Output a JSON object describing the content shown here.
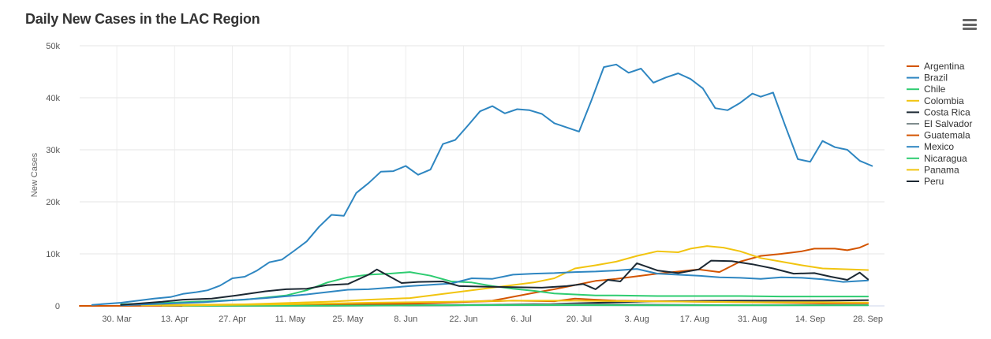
{
  "chart_data": {
    "type": "line",
    "title": "Daily New Cases in the LAC Region",
    "ylabel": "New Cases",
    "xlabel": "",
    "ylim": [
      0,
      50000
    ],
    "yticks": [
      0,
      10000,
      20000,
      30000,
      40000,
      50000
    ],
    "ytick_labels": [
      "0",
      "10k",
      "20k",
      "30k",
      "40k",
      "50k"
    ],
    "x_domain_days": [
      0,
      195
    ],
    "xticks": [
      {
        "day": 9,
        "label": "30. Mar"
      },
      {
        "day": 23,
        "label": "13. Apr"
      },
      {
        "day": 37,
        "label": "27. Apr"
      },
      {
        "day": 51,
        "label": "11. May"
      },
      {
        "day": 65,
        "label": "25. May"
      },
      {
        "day": 79,
        "label": "8. Jun"
      },
      {
        "day": 93,
        "label": "22. Jun"
      },
      {
        "day": 107,
        "label": "6. Jul"
      },
      {
        "day": 121,
        "label": "20. Jul"
      },
      {
        "day": 135,
        "label": "3. Aug"
      },
      {
        "day": 149,
        "label": "17. Aug"
      },
      {
        "day": 163,
        "label": "31. Aug"
      },
      {
        "day": 177,
        "label": "14. Sep"
      },
      {
        "day": 191,
        "label": "28. Sep"
      }
    ],
    "grid": true,
    "legend": "right",
    "series": [
      {
        "name": "Argentina",
        "color": "#d35400",
        "points": [
          [
            0,
            0
          ],
          [
            30,
            50
          ],
          [
            50,
            150
          ],
          [
            70,
            350
          ],
          [
            90,
            700
          ],
          [
            100,
            1000
          ],
          [
            110,
            2500
          ],
          [
            115,
            3200
          ],
          [
            120,
            4000
          ],
          [
            125,
            4800
          ],
          [
            130,
            5200
          ],
          [
            140,
            6200
          ],
          [
            150,
            7000
          ],
          [
            155,
            6500
          ],
          [
            160,
            8500
          ],
          [
            165,
            9600
          ],
          [
            170,
            10000
          ],
          [
            175,
            10500
          ],
          [
            178,
            11000
          ],
          [
            183,
            11000
          ],
          [
            186,
            10700
          ],
          [
            189,
            11200
          ],
          [
            191,
            11900
          ]
        ]
      },
      {
        "name": "Brazil",
        "color": "#2e86c1",
        "points": [
          [
            3,
            200
          ],
          [
            10,
            600
          ],
          [
            15,
            1100
          ],
          [
            18,
            1400
          ],
          [
            22,
            1700
          ],
          [
            25,
            2300
          ],
          [
            28,
            2600
          ],
          [
            31,
            3000
          ],
          [
            34,
            3900
          ],
          [
            37,
            5300
          ],
          [
            40,
            5600
          ],
          [
            43,
            6800
          ],
          [
            46,
            8400
          ],
          [
            49,
            8900
          ],
          [
            52,
            10600
          ],
          [
            55,
            12400
          ],
          [
            58,
            15200
          ],
          [
            61,
            17500
          ],
          [
            64,
            17300
          ],
          [
            67,
            21700
          ],
          [
            70,
            23600
          ],
          [
            73,
            25800
          ],
          [
            76,
            25900
          ],
          [
            79,
            26900
          ],
          [
            82,
            25200
          ],
          [
            85,
            26200
          ],
          [
            88,
            31100
          ],
          [
            91,
            31900
          ],
          [
            94,
            34600
          ],
          [
            97,
            37400
          ],
          [
            100,
            38400
          ],
          [
            103,
            37000
          ],
          [
            106,
            37800
          ],
          [
            109,
            37600
          ],
          [
            112,
            36900
          ],
          [
            115,
            35100
          ],
          [
            121,
            33500
          ],
          [
            124,
            39500
          ],
          [
            127,
            45900
          ],
          [
            130,
            46400
          ],
          [
            133,
            44800
          ],
          [
            136,
            45600
          ],
          [
            139,
            42900
          ],
          [
            142,
            43900
          ],
          [
            145,
            44700
          ],
          [
            148,
            43600
          ],
          [
            151,
            41800
          ],
          [
            154,
            38000
          ],
          [
            157,
            37600
          ],
          [
            160,
            39000
          ],
          [
            163,
            40800
          ],
          [
            165,
            40200
          ],
          [
            168,
            41000
          ],
          [
            171,
            34500
          ],
          [
            174,
            28200
          ],
          [
            177,
            27700
          ],
          [
            180,
            31700
          ],
          [
            183,
            30500
          ],
          [
            186,
            30000
          ],
          [
            189,
            27900
          ],
          [
            192,
            26900
          ]
        ]
      },
      {
        "name": "Chile",
        "color": "#2ecc71",
        "points": [
          [
            10,
            300
          ],
          [
            25,
            700
          ],
          [
            40,
            1200
          ],
          [
            50,
            2000
          ],
          [
            55,
            3000
          ],
          [
            60,
            4500
          ],
          [
            65,
            5500
          ],
          [
            70,
            6000
          ],
          [
            75,
            6200
          ],
          [
            80,
            6500
          ],
          [
            85,
            5800
          ],
          [
            90,
            4700
          ],
          [
            95,
            4500
          ],
          [
            100,
            3800
          ],
          [
            105,
            3300
          ],
          [
            110,
            2900
          ],
          [
            115,
            2400
          ],
          [
            120,
            2200
          ],
          [
            125,
            2000
          ],
          [
            130,
            2000
          ],
          [
            140,
            1900
          ],
          [
            150,
            1900
          ],
          [
            160,
            1900
          ],
          [
            170,
            1800
          ],
          [
            180,
            1800
          ],
          [
            191,
            1800
          ]
        ]
      },
      {
        "name": "Colombia",
        "color": "#f1c40f",
        "points": [
          [
            15,
            100
          ],
          [
            40,
            300
          ],
          [
            60,
            800
          ],
          [
            70,
            1200
          ],
          [
            80,
            1500
          ],
          [
            90,
            2500
          ],
          [
            100,
            3500
          ],
          [
            110,
            4500
          ],
          [
            115,
            5300
          ],
          [
            120,
            7200
          ],
          [
            125,
            7800
          ],
          [
            130,
            8500
          ],
          [
            135,
            9600
          ],
          [
            140,
            10500
          ],
          [
            145,
            10300
          ],
          [
            148,
            11000
          ],
          [
            152,
            11500
          ],
          [
            156,
            11200
          ],
          [
            160,
            10500
          ],
          [
            165,
            9200
          ],
          [
            170,
            8500
          ],
          [
            175,
            7800
          ],
          [
            180,
            7200
          ],
          [
            191,
            6900
          ]
        ]
      },
      {
        "name": "Costa Rica",
        "color": "#1c2833",
        "points": [
          [
            20,
            20
          ],
          [
            60,
            50
          ],
          [
            90,
            100
          ],
          [
            110,
            300
          ],
          [
            120,
            500
          ],
          [
            130,
            700
          ],
          [
            140,
            900
          ],
          [
            150,
            950
          ],
          [
            160,
            1000
          ],
          [
            170,
            1000
          ],
          [
            180,
            1000
          ],
          [
            191,
            1100
          ]
        ]
      },
      {
        "name": "El Salvador",
        "color": "#7f8c8d",
        "points": [
          [
            25,
            20
          ],
          [
            60,
            80
          ],
          [
            80,
            150
          ],
          [
            100,
            250
          ],
          [
            110,
            400
          ],
          [
            120,
            350
          ],
          [
            130,
            300
          ],
          [
            140,
            250
          ],
          [
            160,
            150
          ],
          [
            191,
            150
          ]
        ]
      },
      {
        "name": "Guatemala",
        "color": "#d35400",
        "points": [
          [
            25,
            20
          ],
          [
            60,
            150
          ],
          [
            80,
            400
          ],
          [
            95,
            800
          ],
          [
            105,
            1000
          ],
          [
            115,
            900
          ],
          [
            120,
            1400
          ],
          [
            125,
            1200
          ],
          [
            130,
            1000
          ],
          [
            140,
            900
          ],
          [
            150,
            800
          ],
          [
            160,
            700
          ],
          [
            170,
            600
          ],
          [
            180,
            500
          ],
          [
            191,
            500
          ]
        ]
      },
      {
        "name": "Mexico",
        "color": "#2e86c1",
        "points": [
          [
            10,
            100
          ],
          [
            30,
            700
          ],
          [
            45,
            1500
          ],
          [
            55,
            2200
          ],
          [
            65,
            3100
          ],
          [
            70,
            3200
          ],
          [
            80,
            3800
          ],
          [
            90,
            4300
          ],
          [
            95,
            5300
          ],
          [
            100,
            5200
          ],
          [
            105,
            6000
          ],
          [
            110,
            6200
          ],
          [
            115,
            6300
          ],
          [
            120,
            6500
          ],
          [
            125,
            6600
          ],
          [
            130,
            6800
          ],
          [
            135,
            7100
          ],
          [
            140,
            6200
          ],
          [
            150,
            5800
          ],
          [
            155,
            5500
          ],
          [
            160,
            5400
          ],
          [
            165,
            5200
          ],
          [
            170,
            5500
          ],
          [
            175,
            5400
          ],
          [
            180,
            5100
          ],
          [
            185,
            4600
          ],
          [
            191,
            4900
          ]
        ]
      },
      {
        "name": "Nicaragua",
        "color": "#2ecc71",
        "points": [
          [
            25,
            10
          ],
          [
            60,
            50
          ],
          [
            80,
            100
          ],
          [
            100,
            150
          ],
          [
            120,
            150
          ],
          [
            140,
            120
          ],
          [
            160,
            100
          ],
          [
            191,
            100
          ]
        ]
      },
      {
        "name": "Panama",
        "color": "#f1c40f",
        "points": [
          [
            20,
            50
          ],
          [
            50,
            300
          ],
          [
            70,
            600
          ],
          [
            90,
            800
          ],
          [
            105,
            1000
          ],
          [
            120,
            1000
          ],
          [
            135,
            900
          ],
          [
            150,
            800
          ],
          [
            165,
            700
          ],
          [
            180,
            700
          ],
          [
            191,
            650
          ]
        ]
      },
      {
        "name": "Peru",
        "color": "#1c2833",
        "points": [
          [
            10,
            200
          ],
          [
            20,
            800
          ],
          [
            25,
            1200
          ],
          [
            32,
            1400
          ],
          [
            38,
            2000
          ],
          [
            45,
            2800
          ],
          [
            50,
            3200
          ],
          [
            55,
            3300
          ],
          [
            60,
            4000
          ],
          [
            65,
            4200
          ],
          [
            70,
            6000
          ],
          [
            72,
            7000
          ],
          [
            78,
            4400
          ],
          [
            82,
            4600
          ],
          [
            88,
            4700
          ],
          [
            92,
            3800
          ],
          [
            98,
            3700
          ],
          [
            105,
            3600
          ],
          [
            112,
            3500
          ],
          [
            118,
            3800
          ],
          [
            122,
            4200
          ],
          [
            125,
            3200
          ],
          [
            128,
            5000
          ],
          [
            131,
            4700
          ],
          [
            135,
            8200
          ],
          [
            140,
            6800
          ],
          [
            145,
            6300
          ],
          [
            150,
            7000
          ],
          [
            153,
            8700
          ],
          [
            158,
            8600
          ],
          [
            163,
            8000
          ],
          [
            168,
            7200
          ],
          [
            173,
            6200
          ],
          [
            178,
            6300
          ],
          [
            182,
            5600
          ],
          [
            186,
            5000
          ],
          [
            189,
            6400
          ],
          [
            191,
            5100
          ]
        ]
      }
    ]
  }
}
